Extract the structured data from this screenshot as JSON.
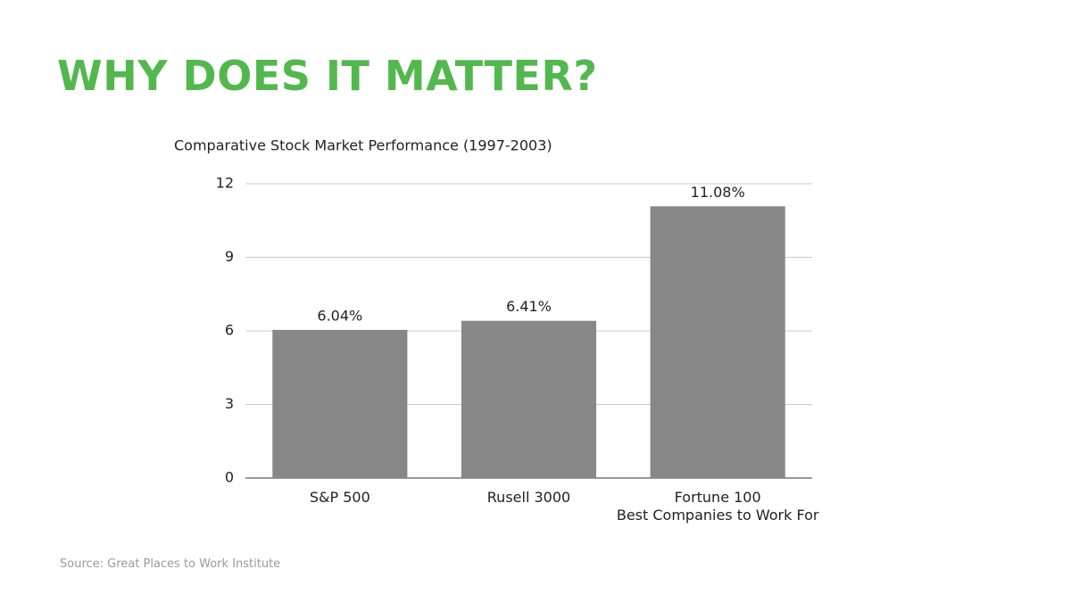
{
  "page_title": "WHY DOES IT MATTER?",
  "source": "Source: Great Places to Work Institute",
  "chart_data": {
    "type": "bar",
    "title": "Comparative Stock Market Performance (1997-2003)",
    "categories": [
      "S&P 500",
      "Rusell 3000",
      "Fortune 100\nBest Companies to Work For"
    ],
    "values": [
      6.04,
      6.41,
      11.08
    ],
    "value_labels": [
      "6.04%",
      "6.41%",
      "11.08%"
    ],
    "color": "#878787",
    "ylim": [
      0,
      12
    ],
    "yticks": [
      0,
      3,
      6,
      9,
      12
    ],
    "grid": true
  }
}
